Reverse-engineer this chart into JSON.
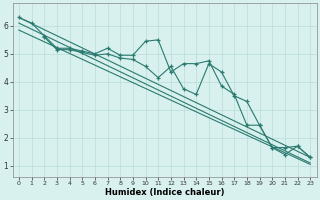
{
  "xlabel": "Humidex (Indice chaleur)",
  "bg_color": "#d8f0ee",
  "grid_color": "#b8ddd8",
  "line_color": "#2a7a6f",
  "xlim": [
    -0.5,
    23.5
  ],
  "ylim": [
    0.6,
    6.8
  ],
  "xticks": [
    0,
    1,
    2,
    3,
    4,
    5,
    6,
    7,
    8,
    9,
    10,
    11,
    12,
    13,
    14,
    15,
    16,
    17,
    18,
    19,
    20,
    21,
    22,
    23
  ],
  "yticks": [
    1,
    2,
    3,
    4,
    5,
    6
  ],
  "series1_x": [
    0,
    1,
    2,
    3,
    4,
    5,
    6,
    7,
    8,
    9,
    10,
    11,
    12,
    13,
    14,
    15,
    16,
    17,
    18,
    19,
    20,
    21,
    22,
    23
  ],
  "series1_y": [
    6.3,
    6.1,
    5.65,
    5.2,
    5.2,
    5.1,
    5.0,
    5.2,
    4.95,
    4.95,
    5.45,
    5.5,
    4.35,
    4.65,
    4.65,
    4.75,
    3.85,
    3.55,
    2.45,
    2.45,
    1.65,
    1.4,
    1.7,
    1.3
  ],
  "series2_x": [
    2,
    3,
    4,
    5,
    6,
    7,
    8,
    9,
    10,
    11,
    12,
    13,
    14,
    15,
    16,
    17,
    18,
    19,
    20,
    21,
    22,
    23
  ],
  "series2_y": [
    5.6,
    5.15,
    5.15,
    5.05,
    4.95,
    5.0,
    4.85,
    4.8,
    4.55,
    4.15,
    4.55,
    3.75,
    3.55,
    4.65,
    4.35,
    3.5,
    3.3,
    2.45,
    1.65,
    1.65,
    1.7,
    1.3
  ],
  "trend1_x": [
    0,
    23
  ],
  "trend1_y": [
    6.3,
    1.3
  ],
  "trend2_x": [
    0,
    23
  ],
  "trend2_y": [
    6.1,
    1.1
  ],
  "trend3_x": [
    0,
    23
  ],
  "trend3_y": [
    5.85,
    1.05
  ]
}
